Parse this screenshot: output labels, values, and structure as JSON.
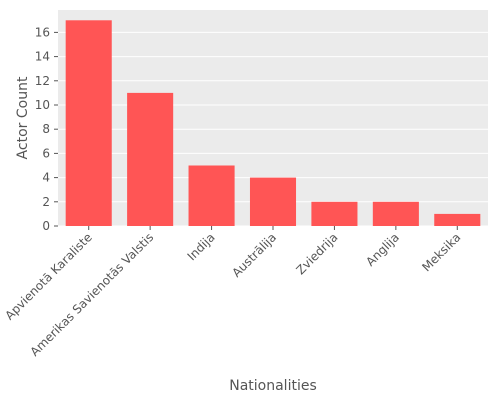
{
  "chart_data": {
    "type": "bar",
    "title": "",
    "xlabel": "Nationalities",
    "ylabel": "Actor Count",
    "categories": [
      "Apvienotā Karaliste",
      "Amerikas Savienotās Valstis",
      "Indija",
      "Austrālija",
      "Zviedrija",
      "Anglija",
      "Meksika"
    ],
    "values": [
      17,
      11,
      5,
      4,
      2,
      2,
      1
    ],
    "ylim": [
      0,
      17.85
    ],
    "yticks": [
      0,
      2,
      4,
      6,
      8,
      10,
      12,
      14,
      16
    ],
    "grid": true,
    "bar_color": "#ff5555",
    "background_color": "#ebebeb",
    "grid_color": "#ffffff"
  }
}
